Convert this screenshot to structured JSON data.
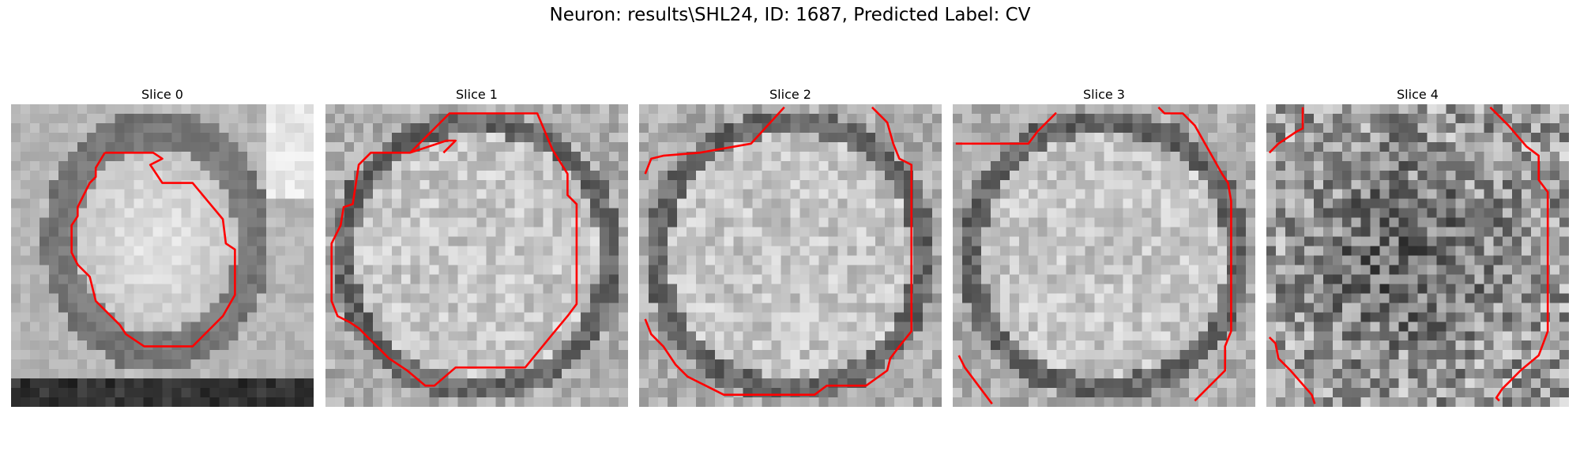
{
  "figure": {
    "title": "Neuron: results\\SHL24, ID: 1687, Predicted Label: CV"
  },
  "contour_color": "#ff0000",
  "panels": [
    {
      "title": "Slice 0",
      "pattern": "blob",
      "contours": [
        [
          [
            0.31,
            0.16
          ],
          [
            0.47,
            0.16
          ],
          [
            0.5,
            0.18
          ],
          [
            0.46,
            0.2
          ],
          [
            0.5,
            0.26
          ],
          [
            0.6,
            0.26
          ],
          [
            0.7,
            0.38
          ],
          [
            0.71,
            0.46
          ],
          [
            0.74,
            0.48
          ],
          [
            0.74,
            0.63
          ],
          [
            0.7,
            0.7
          ],
          [
            0.6,
            0.8
          ],
          [
            0.44,
            0.8
          ],
          [
            0.38,
            0.76
          ],
          [
            0.36,
            0.73
          ],
          [
            0.28,
            0.65
          ],
          [
            0.26,
            0.57
          ],
          [
            0.22,
            0.53
          ],
          [
            0.2,
            0.49
          ],
          [
            0.2,
            0.4
          ],
          [
            0.22,
            0.37
          ],
          [
            0.22,
            0.34
          ],
          [
            0.26,
            0.26
          ],
          [
            0.28,
            0.24
          ],
          [
            0.28,
            0.21
          ],
          [
            0.31,
            0.16
          ]
        ]
      ]
    },
    {
      "title": "Slice 1",
      "pattern": "cell",
      "contours": [
        [
          [
            0.39,
            0.16
          ],
          [
            0.43,
            0.12
          ],
          [
            0.4,
            0.12
          ],
          [
            0.28,
            0.16
          ],
          [
            0.15,
            0.16
          ],
          [
            0.11,
            0.2
          ],
          [
            0.09,
            0.33
          ],
          [
            0.06,
            0.34
          ],
          [
            0.05,
            0.4
          ],
          [
            0.02,
            0.46
          ],
          [
            0.02,
            0.65
          ],
          [
            0.04,
            0.7
          ],
          [
            0.08,
            0.72
          ],
          [
            0.11,
            0.74
          ],
          [
            0.14,
            0.77
          ],
          [
            0.17,
            0.8
          ],
          [
            0.21,
            0.84
          ],
          [
            0.27,
            0.88
          ],
          [
            0.33,
            0.93
          ],
          [
            0.36,
            0.93
          ],
          [
            0.43,
            0.87
          ],
          [
            0.66,
            0.87
          ],
          [
            0.75,
            0.76
          ],
          [
            0.8,
            0.7
          ],
          [
            0.83,
            0.66
          ],
          [
            0.83,
            0.33
          ],
          [
            0.8,
            0.3
          ],
          [
            0.8,
            0.23
          ],
          [
            0.75,
            0.15
          ],
          [
            0.7,
            0.03
          ],
          [
            0.41,
            0.03
          ],
          [
            0.34,
            0.1
          ],
          [
            0.28,
            0.16
          ]
        ]
      ]
    },
    {
      "title": "Slice 2",
      "pattern": "cell",
      "contours": [
        [
          [
            0.02,
            0.23
          ],
          [
            0.04,
            0.18
          ],
          [
            0.08,
            0.17
          ],
          [
            0.2,
            0.16
          ],
          [
            0.37,
            0.13
          ],
          [
            0.48,
            0.01
          ]
        ],
        [
          [
            0.77,
            0.01
          ],
          [
            0.82,
            0.06
          ],
          [
            0.84,
            0.13
          ],
          [
            0.86,
            0.18
          ],
          [
            0.9,
            0.2
          ],
          [
            0.9,
            0.75
          ],
          [
            0.86,
            0.8
          ],
          [
            0.83,
            0.84
          ],
          [
            0.82,
            0.88
          ],
          [
            0.75,
            0.93
          ],
          [
            0.62,
            0.93
          ],
          [
            0.58,
            0.96
          ],
          [
            0.28,
            0.96
          ],
          [
            0.22,
            0.93
          ],
          [
            0.16,
            0.9
          ],
          [
            0.12,
            0.86
          ],
          [
            0.08,
            0.8
          ],
          [
            0.04,
            0.76
          ],
          [
            0.02,
            0.71
          ]
        ]
      ]
    },
    {
      "title": "Slice 3",
      "pattern": "cell",
      "contours": [
        [
          [
            0.01,
            0.13
          ],
          [
            0.25,
            0.13
          ],
          [
            0.28,
            0.09
          ],
          [
            0.3,
            0.07
          ],
          [
            0.34,
            0.03
          ],
          [
            0.32,
            0.05
          ]
        ],
        [
          [
            0.68,
            0.01
          ],
          [
            0.7,
            0.03
          ],
          [
            0.76,
            0.03
          ],
          [
            0.8,
            0.07
          ],
          [
            0.89,
            0.23
          ],
          [
            0.91,
            0.26
          ],
          [
            0.92,
            0.32
          ],
          [
            0.92,
            0.75
          ],
          [
            0.9,
            0.8
          ],
          [
            0.9,
            0.88
          ],
          [
            0.8,
            0.98
          ]
        ],
        [
          [
            0.02,
            0.83
          ],
          [
            0.04,
            0.87
          ],
          [
            0.13,
            0.99
          ]
        ]
      ]
    },
    {
      "title": "Slice 4",
      "pattern": "noise",
      "contours": [
        [
          [
            0.01,
            0.16
          ],
          [
            0.04,
            0.13
          ],
          [
            0.1,
            0.09
          ],
          [
            0.12,
            0.08
          ],
          [
            0.12,
            0.01
          ]
        ],
        [
          [
            0.74,
            0.01
          ],
          [
            0.8,
            0.07
          ],
          [
            0.86,
            0.14
          ],
          [
            0.9,
            0.17
          ],
          [
            0.9,
            0.25
          ],
          [
            0.93,
            0.29
          ],
          [
            0.93,
            0.75
          ],
          [
            0.9,
            0.83
          ],
          [
            0.84,
            0.88
          ],
          [
            0.8,
            0.92
          ],
          [
            0.78,
            0.94
          ],
          [
            0.76,
            0.97
          ],
          [
            0.77,
            0.98
          ]
        ],
        [
          [
            0.01,
            0.77
          ],
          [
            0.03,
            0.79
          ],
          [
            0.04,
            0.84
          ],
          [
            0.08,
            0.88
          ],
          [
            0.15,
            0.96
          ],
          [
            0.16,
            0.99
          ]
        ]
      ]
    }
  ]
}
